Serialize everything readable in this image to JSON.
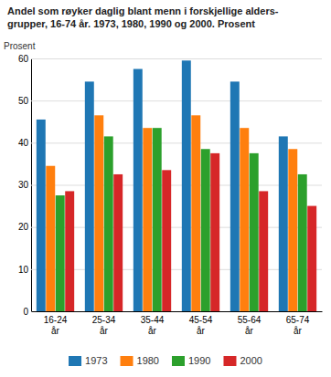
{
  "chart_data": {
    "type": "bar",
    "title": "Andel som røyker daglig blant menn i forskjellige alders-\ngrupper, 16-74 år. 1973, 1980, 1990 og 2000. Prosent",
    "y_label": "Prosent",
    "categories": [
      "16-24\når",
      "25-34\når",
      "35-44\når",
      "45-54\når",
      "55-64\når",
      "65-74\når"
    ],
    "series": [
      {
        "name": "1973",
        "values": [
          45.5,
          54.5,
          57.5,
          59.5,
          54.5,
          41.5
        ]
      },
      {
        "name": "1980",
        "values": [
          34.5,
          46.5,
          43.5,
          46.5,
          43.5,
          38.5
        ]
      },
      {
        "name": "1990",
        "values": [
          27.5,
          41.5,
          43.5,
          38.5,
          37.5,
          32.5
        ]
      },
      {
        "name": "2000",
        "values": [
          28.5,
          32.5,
          33.5,
          37.5,
          28.5,
          25.0
        ]
      }
    ],
    "ylim": [
      0,
      60
    ],
    "yticks": [
      0,
      10,
      20,
      30,
      40,
      50,
      60
    ],
    "grid": true,
    "legend": "bottom"
  }
}
